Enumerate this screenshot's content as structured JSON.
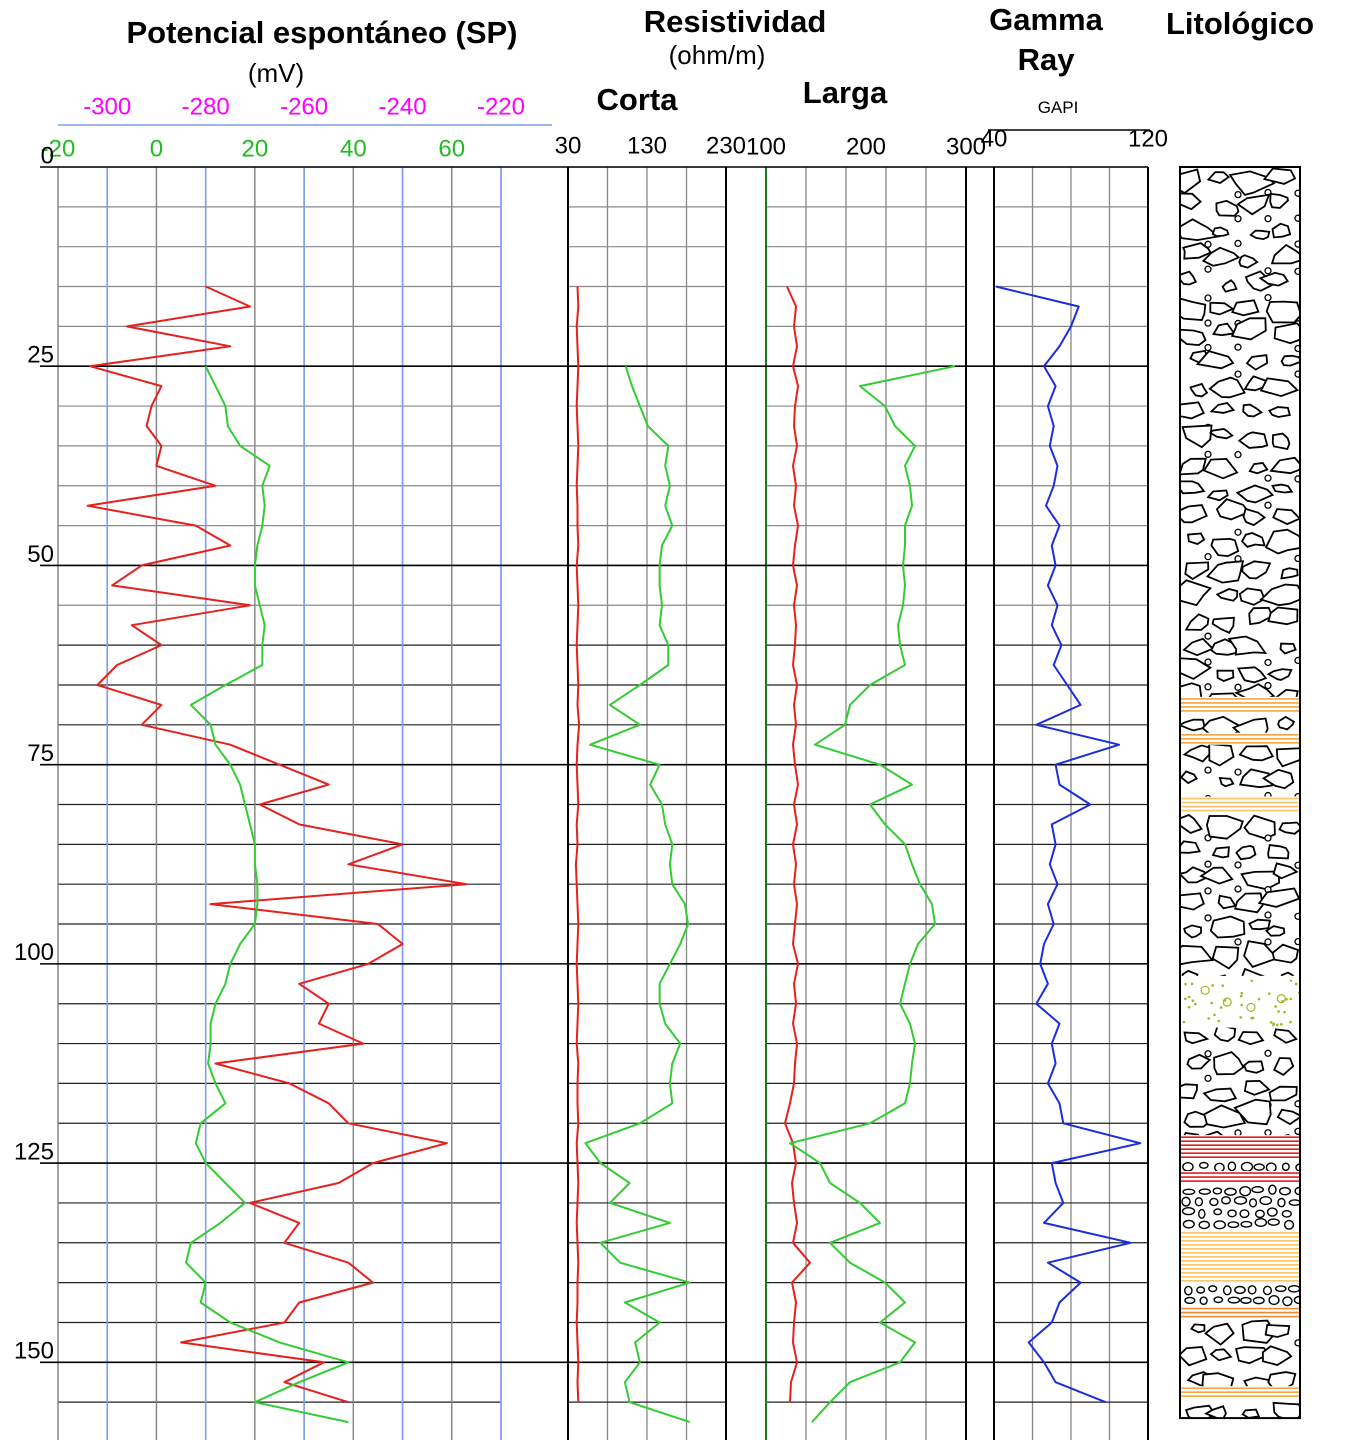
{
  "chart_data": {
    "type": "well-log",
    "y": [
      15,
      17.5,
      20,
      22.5,
      25,
      27.5,
      30,
      32.5,
      35,
      37.5,
      40,
      42.5,
      45,
      47.5,
      50,
      52.5,
      55,
      57.5,
      60,
      62.5,
      65,
      67.5,
      70,
      72.5,
      75,
      77.5,
      80,
      82.5,
      85,
      87.5,
      90,
      92.5,
      95,
      97.5,
      100,
      102.5,
      105,
      107.5,
      110,
      112.5,
      115,
      117.5,
      120,
      122.5,
      125,
      127.5,
      130,
      132.5,
      135,
      137.5,
      140,
      142.5,
      145,
      147.5,
      150,
      152.5,
      155,
      157.5
    ],
    "ylim": [
      0,
      160
    ],
    "yticks": [
      0,
      25,
      50,
      75,
      100,
      125,
      150
    ],
    "tracks": [
      {
        "type": "line",
        "title": "Potencial espontáneo (SP)",
        "subtitle": "(mV)",
        "xlim": [
          -310,
          -220
        ],
        "xticks": [
          -300,
          -280,
          -260,
          -240,
          -220
        ],
        "xtick_color": "#ff00ff",
        "xgrid_color": "#7f9ef0",
        "x2lim": [
          -20,
          70
        ],
        "x2ticks": [
          -20,
          0,
          20,
          40,
          60
        ],
        "x2tick_color": "#22bb22",
        "x2grid_color": "#888888",
        "series": [
          {
            "color": "#e8201c",
            "values": [
              -280,
              -271,
              -296,
              -275,
              -303.5,
              -289,
              -291,
              -292,
              -289,
              -290,
              -278,
              -304,
              -282,
              -275,
              -293,
              -299,
              -271,
              -295,
              -289,
              -298,
              -302,
              -289,
              -293,
              -275,
              -265,
              -255,
              -269,
              -261,
              -240,
              -251,
              -227,
              -279,
              -245,
              -240,
              -247,
              -261,
              -255,
              -257,
              -248,
              -278,
              -263,
              -255,
              -251,
              -231,
              -246,
              -253,
              -271,
              -261,
              -264,
              -251,
              -246,
              -261,
              -264,
              -285,
              -256,
              -264,
              -251,
              null
            ]
          },
          {
            "color": "#33cc33",
            "axis": "x2",
            "values": [
              null,
              null,
              null,
              null,
              10,
              12,
              14,
              14.5,
              17,
              23,
              21.5,
              22,
              21.5,
              20.5,
              20,
              20,
              21,
              22,
              21.5,
              21.5,
              14,
              7,
              11,
              12,
              15,
              17,
              18,
              19,
              20,
              20,
              20.5,
              20.5,
              20,
              17,
              15,
              14,
              12,
              11,
              11,
              10.5,
              12,
              14,
              9,
              8,
              10,
              14,
              18,
              13,
              7,
              6,
              10,
              9,
              15,
              25,
              39,
              29,
              20,
              39
            ]
          }
        ]
      },
      {
        "type": "line",
        "title": "Resistividad",
        "subtitle": "(ohm/m)",
        "label": "Corta",
        "xlim": [
          30,
          230
        ],
        "xticks": [
          30,
          130,
          230
        ],
        "series": [
          {
            "color": "#e8201c",
            "values": [
              42,
              43,
              41,
              42,
              43,
              42,
              41,
              42,
              43,
              42,
              41,
              42,
              42,
              43,
              41,
              42,
              43,
              42,
              41,
              42,
              43,
              42,
              44,
              42,
              41,
              42,
              43,
              41,
              42,
              40,
              41,
              42,
              43,
              42,
              41,
              42,
              43,
              42,
              41,
              43,
              42,
              42,
              43,
              41,
              42,
              43,
              42,
              41,
              42,
              43,
              42,
              42,
              41,
              42,
              43,
              42,
              43,
              null
            ]
          },
          {
            "color": "#33cc33",
            "values": [
              null,
              null,
              null,
              null,
              103,
              111,
              121,
              131,
              157,
              153,
              159,
              153,
              162,
              149,
              146,
              146,
              149,
              146,
              157,
              157,
              121,
              83,
              121,
              58,
              146,
              134,
              149,
              153,
              162,
              159,
              162,
              178,
              182,
              172,
              159,
              146,
              146,
              153,
              172,
              162,
              159,
              162,
              121,
              52,
              71,
              108,
              83,
              159,
              71,
              96,
              184,
              102,
              146,
              115,
              121,
              102,
              108,
              184
            ]
          }
        ]
      },
      {
        "type": "line",
        "label": "Larga",
        "xlim": [
          100,
          300
        ],
        "xticks": [
          100,
          200,
          300
        ],
        "series": [
          {
            "color": "#e8201c",
            "values": [
              121,
              130,
              128,
              131,
              127,
              132,
              129,
              128,
              131,
              127,
              130,
              128,
              132,
              129,
              127,
              131,
              128,
              130,
              129,
              127,
              131,
              128,
              130,
              127,
              129,
              132,
              128,
              131,
              127,
              130,
              128,
              131,
              129,
              127,
              132,
              128,
              130,
              127,
              131,
              129,
              128,
              124,
              119,
              127,
              130,
              126,
              128,
              131,
              127,
              144,
              126,
              130,
              128,
              127,
              131,
              125,
              124,
              null
            ]
          },
          {
            "color": "#33cc33",
            "values": [
              null,
              null,
              null,
              null,
              289,
              194,
              219,
              229,
              249,
              239,
              244,
              246,
              239,
              239,
              237,
              239,
              237,
              232,
              234,
              239,
              204,
              184,
              179,
              149,
              214,
              246,
              204,
              219,
              239,
              246,
              254,
              266,
              269,
              252,
              244,
              239,
              234,
              244,
              249,
              246,
              244,
              239,
              204,
              124,
              154,
              164,
              194,
              214,
              164,
              184,
              219,
              239,
              214,
              249,
              234,
              184,
              164,
              146
            ]
          }
        ]
      },
      {
        "type": "line",
        "title": "Gamma Ray",
        "subtitle": "GAPI",
        "xlim": [
          40,
          120
        ],
        "xticks": [
          40,
          120
        ],
        "series": [
          {
            "color": "#1a2ee0",
            "values": [
              41,
              84,
              80,
              74,
              66,
              72,
              68,
              71,
              69,
              73,
              71,
              67,
              74,
              70,
              72,
              68,
              73,
              70,
              75,
              71,
              78,
              85,
              62,
              105,
              72,
              74,
              90,
              70,
              72,
              69,
              73,
              68,
              71,
              66,
              64,
              68,
              62,
              74,
              70,
              72,
              68,
              74,
              76,
              116,
              70,
              72,
              76,
              66,
              111,
              68,
              85,
              74,
              70,
              58,
              66,
              72,
              98,
              null
            ]
          }
        ]
      },
      {
        "type": "lithology",
        "title": "Litológico",
        "intervals": [
          {
            "top": 0,
            "base": 66.5,
            "pattern": "conglomerate"
          },
          {
            "top": 66.5,
            "base": 68.5,
            "pattern": "lines",
            "color": "#f4a640"
          },
          {
            "top": 68.5,
            "base": 71,
            "pattern": "conglomerate"
          },
          {
            "top": 71,
            "base": 72.5,
            "pattern": "lines",
            "color": "#f4a640"
          },
          {
            "top": 72.5,
            "base": 79,
            "pattern": "conglomerate"
          },
          {
            "top": 79,
            "base": 81,
            "pattern": "lines",
            "color": "#f7c66a"
          },
          {
            "top": 81,
            "base": 101.5,
            "pattern": "conglomerate"
          },
          {
            "top": 102,
            "base": 108,
            "pattern": "dots",
            "color": "#a0b820"
          },
          {
            "top": 108,
            "base": 121.5,
            "pattern": "conglomerate"
          },
          {
            "top": 121.5,
            "base": 124.5,
            "pattern": "lines",
            "color": "#e02020"
          },
          {
            "top": 124.5,
            "base": 126,
            "pattern": "pebbles"
          },
          {
            "top": 126,
            "base": 127.5,
            "pattern": "lines",
            "color": "#e02020"
          },
          {
            "top": 127.5,
            "base": 133.5,
            "pattern": "pebbles"
          },
          {
            "top": 133.5,
            "base": 140,
            "pattern": "lines",
            "color": "#f7c66a"
          },
          {
            "top": 140,
            "base": 143,
            "pattern": "pebbles"
          },
          {
            "top": 143,
            "base": 144.5,
            "pattern": "lines",
            "color": "#f08a30"
          },
          {
            "top": 144.5,
            "base": 153,
            "pattern": "conglomerate"
          },
          {
            "top": 153,
            "base": 154.5,
            "pattern": "lines",
            "color": "#f4a640"
          },
          {
            "top": 154.5,
            "base": 157,
            "pattern": "conglomerate"
          }
        ]
      }
    ]
  }
}
